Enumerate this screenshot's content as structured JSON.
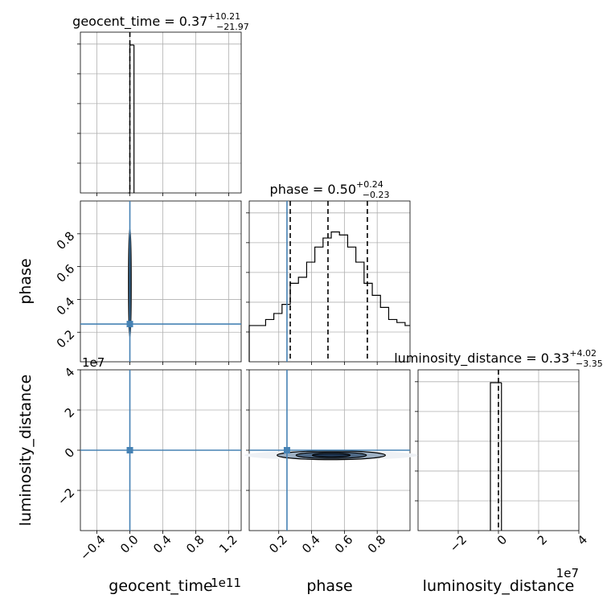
{
  "chart_data": {
    "type": "corner",
    "parameters": [
      "geocent_time",
      "phase",
      "luminosity_distance"
    ],
    "titles": [
      {
        "param": "geocent_time",
        "prefix": "geocent_time = ",
        "value": "0.37",
        "plus": "+10.21",
        "minus": "−21.97"
      },
      {
        "param": "phase",
        "prefix": "phase = ",
        "value": "0.50",
        "plus": "+0.24",
        "minus": "−0.23"
      },
      {
        "param": "luminosity_distance",
        "prefix": "luminosity_distance = ",
        "value": "0.33",
        "plus": "+4.02",
        "minus": "−3.35"
      }
    ],
    "axes": {
      "geocent_time": {
        "range": [
          -0.6,
          1.35
        ],
        "ticks": [
          "−0.4",
          "0.0",
          "0.4",
          "0.8",
          "1.2"
        ],
        "tick_values": [
          -0.4,
          0.0,
          0.4,
          0.8,
          1.2
        ],
        "offset_text": "1e11",
        "xlabel": "geocent_time"
      },
      "phase": {
        "range": [
          0.02,
          1.0
        ],
        "ticks": [
          "0.2",
          "0.4",
          "0.6",
          "0.8"
        ],
        "tick_values": [
          0.2,
          0.4,
          0.6,
          0.8
        ],
        "xlabel": "phase",
        "ylabel": "phase"
      },
      "luminosity_distance": {
        "range": [
          -4.0,
          4.0
        ],
        "ticks": [
          "−2",
          "0",
          "2",
          "4"
        ],
        "tick_values": [
          -2,
          0,
          2,
          4
        ],
        "offset_text": "1e7",
        "xlabel": "luminosity_distance",
        "ylabel": "luminosity_distance"
      }
    },
    "truths": {
      "geocent_time": 0.0,
      "phase": 0.25,
      "luminosity_distance": 0.0
    },
    "quantiles_phase": [
      0.27,
      0.5,
      0.74
    ],
    "hist_geocent_time": {
      "edges": [
        -0.02,
        0.0,
        0.05
      ],
      "counts": [
        0.0,
        1.0
      ]
    },
    "hist_phase": {
      "edges": [
        0.02,
        0.07,
        0.12,
        0.17,
        0.22,
        0.27,
        0.32,
        0.37,
        0.42,
        0.47,
        0.52,
        0.57,
        0.62,
        0.67,
        0.72,
        0.77,
        0.82,
        0.87,
        0.92,
        0.97,
        1.0
      ],
      "counts": [
        0.24,
        0.24,
        0.28,
        0.32,
        0.38,
        0.52,
        0.56,
        0.66,
        0.76,
        0.82,
        0.86,
        0.84,
        0.76,
        0.66,
        0.52,
        0.44,
        0.36,
        0.28,
        0.26,
        0.24
      ]
    },
    "hist_luminosity_distance": {
      "edges": [
        -0.4,
        0.0,
        0.15
      ],
      "counts": [
        1.0,
        1.0
      ]
    },
    "contour_phase_vs_geocent_time": {
      "center_x": 0.0,
      "center_y": 0.5,
      "half_width": 0.016,
      "half_height": 0.33
    },
    "contour_distance_vs_geocent_time": {
      "center_x": 0.0,
      "center_y": 0.0,
      "half_width": 0.012,
      "half_height": 0.12
    },
    "contour_distance_vs_phase": {
      "center_x": 0.52,
      "center_y": -0.25,
      "half_width": 0.33,
      "half_height": 0.22
    },
    "grid": true
  }
}
